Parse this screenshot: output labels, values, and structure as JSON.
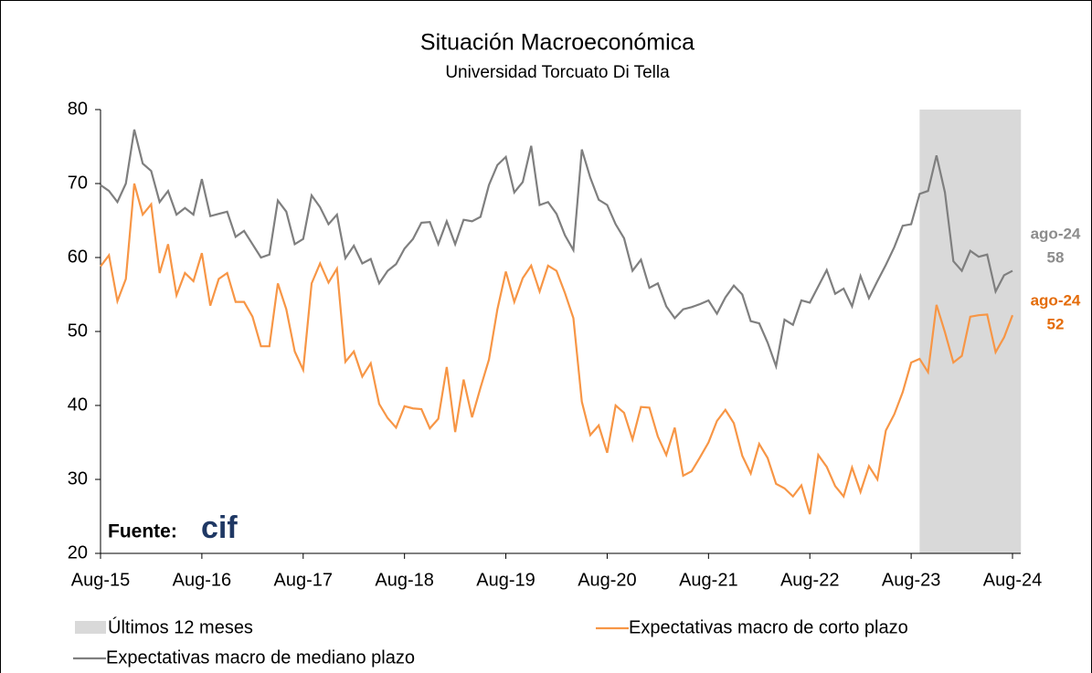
{
  "chart_data": {
    "type": "line",
    "title": "Situación Macroeconómica",
    "subtitle": "Universidad Torcuato Di Tella",
    "categories": [
      "Aug-15",
      null,
      null,
      null,
      null,
      null,
      null,
      null,
      null,
      null,
      null,
      null,
      "Aug-16",
      null,
      null,
      null,
      null,
      null,
      null,
      null,
      null,
      null,
      null,
      null,
      "Aug-17",
      null,
      null,
      null,
      null,
      null,
      null,
      null,
      null,
      null,
      null,
      null,
      "Aug-18",
      null,
      null,
      null,
      null,
      null,
      null,
      null,
      null,
      null,
      null,
      null,
      "Aug-19",
      null,
      null,
      null,
      null,
      null,
      null,
      null,
      null,
      null,
      null,
      null,
      "Aug-20",
      null,
      null,
      null,
      null,
      null,
      null,
      null,
      null,
      null,
      null,
      null,
      "Aug-21",
      null,
      null,
      null,
      null,
      null,
      null,
      null,
      null,
      null,
      null,
      null,
      "Aug-22",
      null,
      null,
      null,
      null,
      null,
      null,
      null,
      null,
      null,
      null,
      null,
      "Aug-23",
      null,
      null,
      null,
      null,
      null,
      null,
      null,
      null,
      null,
      null,
      null,
      "Aug-24"
    ],
    "series": [
      {
        "name": "Expectativas macro de corto plazo",
        "color": "#f79646",
        "values": [
          58.8,
          60.3,
          54.1,
          57.1,
          70,
          65.8,
          67.2,
          57.9,
          61.8,
          54.9,
          57.9,
          56.8,
          60.6,
          53.5,
          57.1,
          57.9,
          54,
          54,
          52,
          48,
          48,
          56.5,
          53,
          47.3,
          44.8,
          56.5,
          59.2,
          56.6,
          58.5,
          45.9,
          47.3,
          43.9,
          45.7,
          40.2,
          38.3,
          37,
          39.9,
          39.6,
          39.5,
          36.9,
          38.2,
          45.2,
          36.4,
          43.5,
          38.4,
          42.4,
          46.2,
          53,
          58.1,
          54,
          57.2,
          58.9,
          55.4,
          58.9,
          58.2,
          55.2,
          51.8,
          40.5,
          36,
          37.3,
          33.6,
          40,
          39,
          35.4,
          39.8,
          39.7,
          35.8,
          33.3,
          37,
          30.5,
          31.1,
          33,
          35,
          37.9,
          39.4,
          37.6,
          33.2,
          30.8,
          34.8,
          32.9,
          29.4,
          28.8,
          27.7,
          29.2,
          25.3,
          33.3,
          31.7,
          29.1,
          27.7,
          31.6,
          28.3,
          31.8,
          30,
          36.6,
          38.8,
          41.8,
          45.8,
          46.3,
          44.5,
          53.6,
          49.9,
          45.8,
          46.7,
          52,
          52.2,
          52.3,
          47.2,
          49.2,
          52.2
        ]
      },
      {
        "name": "Expectativas macro de mediano plazo",
        "color": "#7f7f7f",
        "values": [
          69.8,
          69,
          67.5,
          70,
          77.3,
          72.7,
          71.7,
          67.5,
          69,
          65.8,
          66.7,
          65.8,
          70.6,
          65.6,
          65.9,
          66.2,
          62.8,
          63.6,
          61.8,
          60,
          60.4,
          67.7,
          66.2,
          61.8,
          62.5,
          68.4,
          66.8,
          64.5,
          65.8,
          59.9,
          61.6,
          59.2,
          59.8,
          56.5,
          58.2,
          59.1,
          61.2,
          62.5,
          64.7,
          64.8,
          61.8,
          64.9,
          61.8,
          65.1,
          64.9,
          65.5,
          69.8,
          72.5,
          73.6,
          68.8,
          70.2,
          75.1,
          67.1,
          67.5,
          65.9,
          63,
          61,
          74.6,
          70.8,
          67.8,
          67.1,
          64.5,
          62.6,
          58.2,
          59.7,
          55.9,
          56.5,
          53.4,
          51.8,
          53,
          53.3,
          53.7,
          54.2,
          52.4,
          54.6,
          56.2,
          55,
          51.4,
          51.1,
          48.5,
          45.3,
          51.6,
          50.9,
          54.2,
          53.9,
          56.1,
          58.3,
          55.1,
          55.8,
          53.4,
          57.5,
          54.5,
          56.8,
          59,
          61.4,
          64.3,
          64.5,
          68.6,
          69,
          73.8,
          68.8,
          59.5,
          58.2,
          60.9,
          60.1,
          60.4,
          55.4,
          57.6,
          58.2
        ]
      }
    ],
    "shade": {
      "name": "Últimos 12 meses",
      "color": "#d9d9d9",
      "months": 12
    },
    "ylim": [
      20,
      80
    ],
    "yticks": [
      20,
      30,
      40,
      50,
      60,
      70,
      80
    ],
    "annotations": [
      {
        "text": "ago-24",
        "label": "58",
        "color": "#8c8c8c"
      },
      {
        "text": "ago-24",
        "label": "52",
        "color": "#e46c0a"
      }
    ],
    "source": {
      "label": "Fuente:",
      "logo": "cif"
    }
  }
}
